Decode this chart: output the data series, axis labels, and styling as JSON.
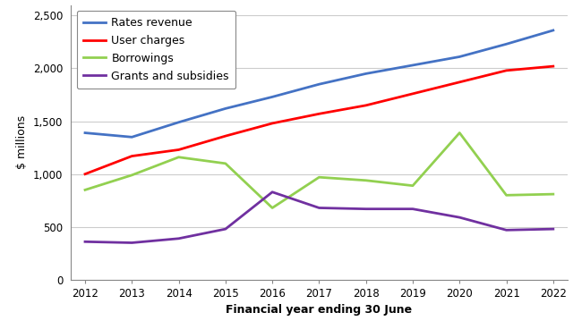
{
  "years": [
    2012,
    2013,
    2014,
    2015,
    2016,
    2017,
    2018,
    2019,
    2020,
    2021,
    2022
  ],
  "rates_revenue": [
    1390,
    1350,
    1490,
    1620,
    1730,
    1850,
    1950,
    2030,
    2110,
    2230,
    2360
  ],
  "user_charges": [
    1000,
    1170,
    1230,
    1360,
    1480,
    1570,
    1650,
    1760,
    1870,
    1980,
    2020
  ],
  "borrowings": [
    850,
    990,
    1160,
    1100,
    680,
    970,
    940,
    890,
    1390,
    800,
    810
  ],
  "grants": [
    360,
    350,
    390,
    480,
    830,
    680,
    670,
    670,
    590,
    470,
    480
  ],
  "series_colors": {
    "rates_revenue": "#4472C4",
    "user_charges": "#FF0000",
    "borrowings": "#92D050",
    "grants": "#7030A0"
  },
  "series_labels": {
    "rates_revenue": "Rates revenue",
    "user_charges": "User charges",
    "borrowings": "Borrowings",
    "grants": "Grants and subsidies"
  },
  "xlabel": "Financial year ending 30 June",
  "ylabel": "$ millions",
  "ylim": [
    0,
    2600
  ],
  "yticks": [
    0,
    500,
    1000,
    1500,
    2000,
    2500
  ],
  "ytick_labels": [
    "0",
    "500",
    "1,000",
    "1,500",
    "2,000",
    "2,500"
  ],
  "background_color": "#FFFFFF",
  "plot_bg_color": "#F5F5F5",
  "line_width": 2.0,
  "legend_fontsize": 9,
  "axis_label_fontsize": 9,
  "tick_fontsize": 8.5,
  "grid_color": "#CCCCCC",
  "grid_linewidth": 0.8
}
